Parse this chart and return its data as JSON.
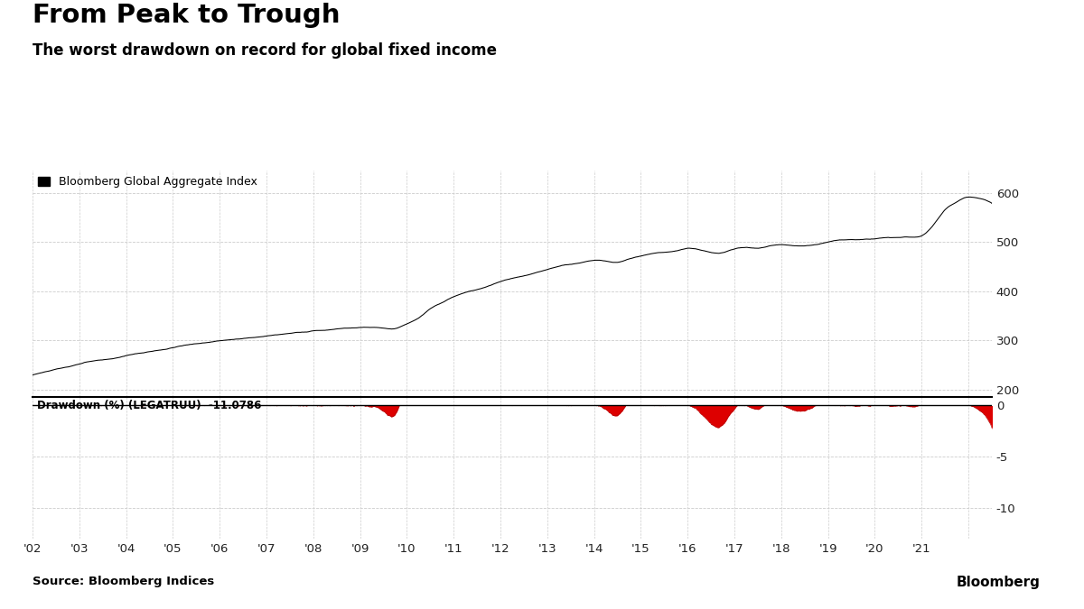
{
  "title": "From Peak to Trough",
  "subtitle": "The worst drawdown on record for global fixed income",
  "legend_label": "Bloomberg Global Aggregate Index",
  "drawdown_label": "Drawdown (%) (LEGATRUU)  -11.0786",
  "source": "Source: Bloomberg Indices",
  "branding": "Bloomberg",
  "x_tick_labels": [
    "'02",
    "'03",
    "'04",
    "'05",
    "'06",
    "'07",
    "'08",
    "'09",
    "'10",
    "'11",
    "'12",
    "'13",
    "'14",
    "'15",
    "'16",
    "'17",
    "'18",
    "'19",
    "'20",
    "'21"
  ],
  "index_yticks": [
    200,
    300,
    400,
    500,
    600
  ],
  "drawdown_yticks": [
    0,
    -5,
    -10
  ],
  "bg_color": "#ffffff",
  "line_color": "#000000",
  "fill_color": "#dd0000",
  "grid_color": "#cccccc",
  "title_color": "#000000"
}
